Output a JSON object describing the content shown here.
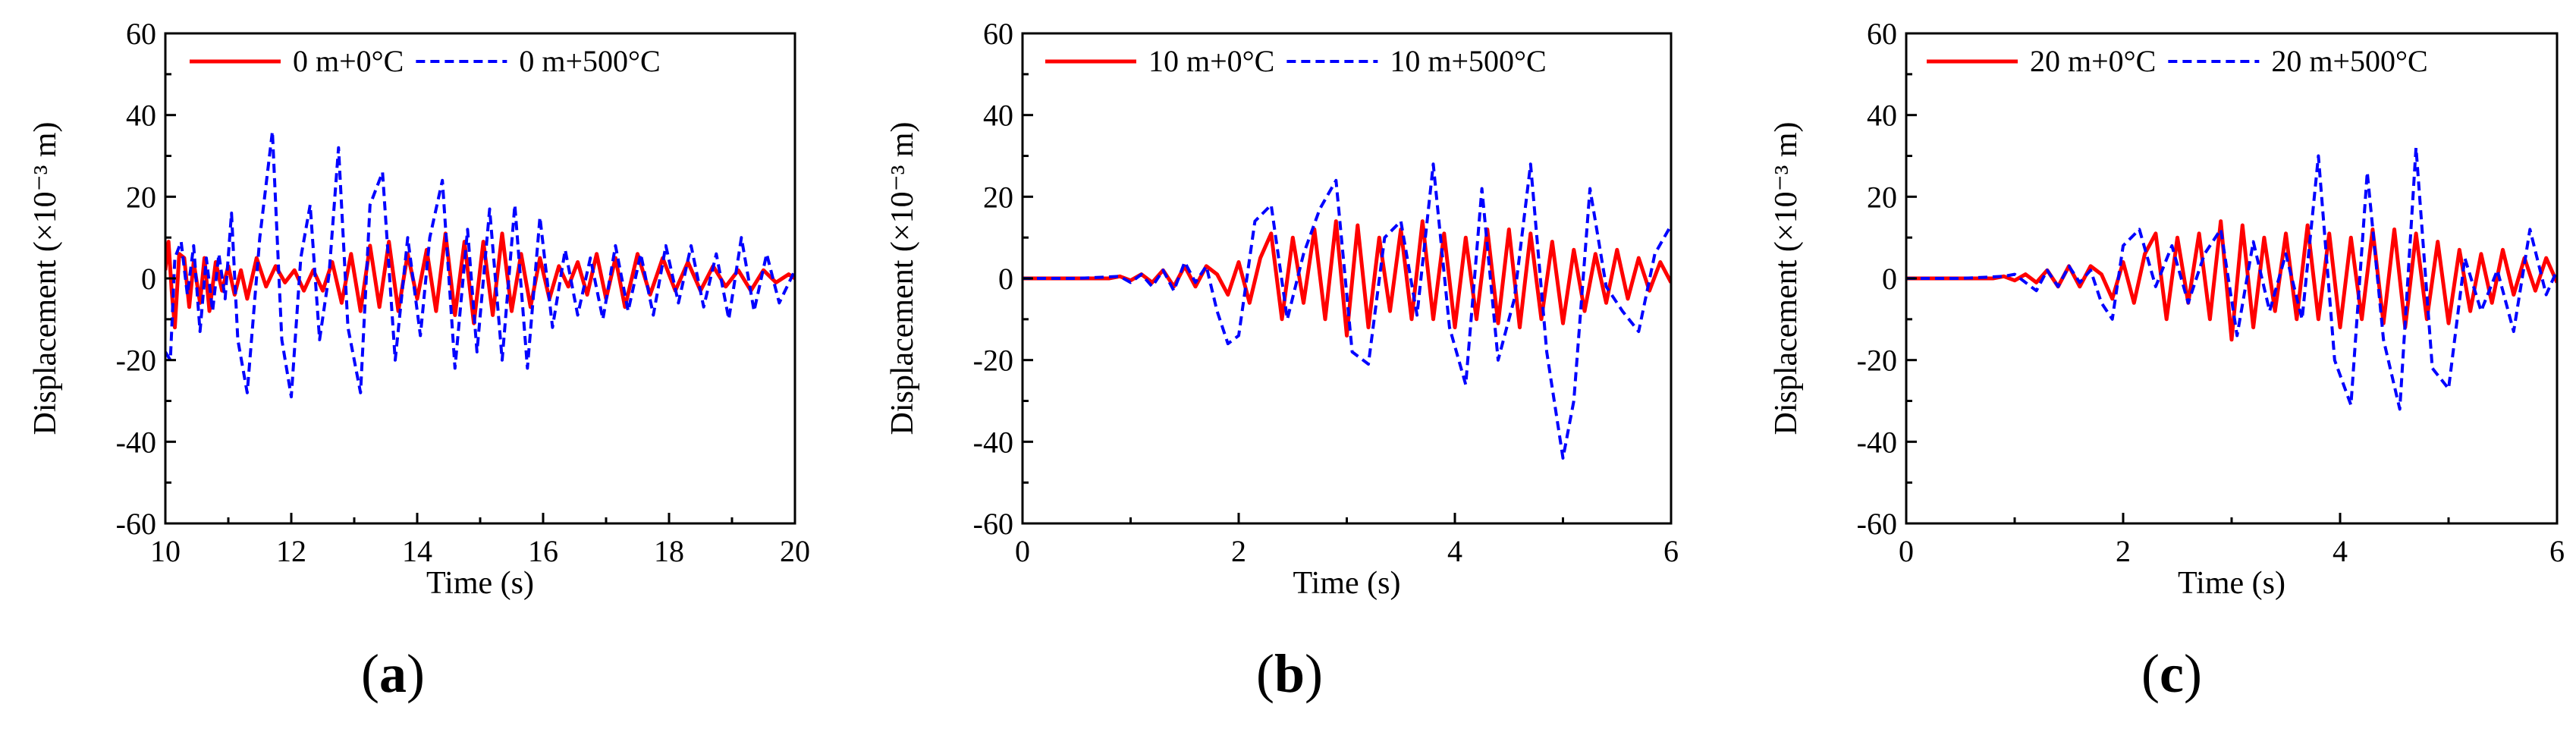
{
  "figure": {
    "panels": [
      {
        "open": "(",
        "letter": "a",
        "close": ")"
      },
      {
        "open": "(",
        "letter": "b",
        "close": ")"
      },
      {
        "open": "(",
        "letter": "c",
        "close": ")"
      }
    ]
  },
  "colors": {
    "red_series": "#ff0000",
    "blue_series": "#0000ff",
    "axis": "#000000"
  },
  "chart_data": [
    {
      "type": "line",
      "xlabel": "Time (s)",
      "ylabel": "Displacement (×10⁻³ m)",
      "xlim": [
        10,
        20
      ],
      "ylim": [
        -60,
        60
      ],
      "xticks": [
        "10",
        "12",
        "14",
        "16",
        "18",
        "20"
      ],
      "yticks": [
        "-60",
        "-40",
        "-20",
        "0",
        "20",
        "40",
        "60"
      ],
      "legend_position": "top",
      "series": [
        {
          "name": "0 m+0°C",
          "style": "solid",
          "color": "#ff0000",
          "x": [
            10,
            10.05,
            10.1,
            10.15,
            10.22,
            10.3,
            10.38,
            10.45,
            10.55,
            10.62,
            10.7,
            10.8,
            10.9,
            11.0,
            11.1,
            11.2,
            11.3,
            11.45,
            11.6,
            11.75,
            11.9,
            12.05,
            12.2,
            12.35,
            12.5,
            12.65,
            12.8,
            12.95,
            13.1,
            13.25,
            13.4,
            13.55,
            13.7,
            13.85,
            14.0,
            14.15,
            14.3,
            14.45,
            14.6,
            14.75,
            14.9,
            15.05,
            15.2,
            15.35,
            15.5,
            15.65,
            15.8,
            15.95,
            16.1,
            16.25,
            16.4,
            16.55,
            16.7,
            16.85,
            17.0,
            17.15,
            17.3,
            17.5,
            17.7,
            17.9,
            18.1,
            18.3,
            18.5,
            18.7,
            18.9,
            19.1,
            19.3,
            19.5,
            19.7,
            19.9,
            20
          ],
          "y": [
            2,
            9,
            -3,
            -12,
            6,
            5,
            -7,
            4,
            -6,
            5,
            -8,
            4,
            -3,
            3,
            -4,
            2,
            -5,
            5,
            -2,
            3,
            -1,
            2,
            -3,
            2,
            -3,
            4,
            -6,
            6,
            -8,
            8,
            -7,
            9,
            -8,
            6,
            -5,
            7,
            -8,
            11,
            -9,
            9,
            -11,
            9,
            -9,
            11,
            -8,
            6,
            -7,
            5,
            -5,
            3,
            -2,
            4,
            -4,
            6,
            -5,
            5,
            -7,
            6,
            -4,
            5,
            -3,
            4,
            -3,
            3,
            -2,
            2,
            -3,
            2,
            -1,
            1,
            0
          ]
        },
        {
          "name": "0 m+500°C",
          "style": "dashed",
          "color": "#0000ff",
          "x": [
            10,
            10.08,
            10.15,
            10.25,
            10.35,
            10.45,
            10.55,
            10.65,
            10.75,
            10.85,
            10.95,
            11.05,
            11.15,
            11.3,
            11.5,
            11.7,
            11.85,
            12.0,
            12.15,
            12.3,
            12.45,
            12.6,
            12.75,
            12.9,
            13.1,
            13.25,
            13.45,
            13.65,
            13.85,
            14.05,
            14.2,
            14.4,
            14.6,
            14.8,
            14.95,
            15.15,
            15.35,
            15.55,
            15.75,
            15.95,
            16.15,
            16.35,
            16.55,
            16.75,
            16.95,
            17.15,
            17.35,
            17.55,
            17.75,
            17.95,
            18.15,
            18.35,
            18.55,
            18.75,
            18.95,
            19.15,
            19.35,
            19.55,
            19.75,
            20
          ],
          "y": [
            -18,
            -20,
            5,
            9,
            -4,
            8,
            -13,
            5,
            -8,
            6,
            -5,
            16,
            -15,
            -28,
            10,
            36,
            -15,
            -29,
            5,
            18,
            -15,
            1,
            32,
            -12,
            -28,
            18,
            26,
            -20,
            10,
            -14,
            10,
            24,
            -22,
            12,
            -18,
            17,
            -20,
            18,
            -22,
            15,
            -12,
            7,
            -9,
            5,
            -10,
            8,
            -8,
            6,
            -9,
            8,
            -6,
            8,
            -7,
            6,
            -10,
            10,
            -8,
            6,
            -6,
            2
          ]
        }
      ]
    },
    {
      "type": "line",
      "xlabel": "Time (s)",
      "ylabel": "Displacement (×10⁻³ m)",
      "xlim": [
        0,
        6
      ],
      "ylim": [
        -60,
        60
      ],
      "xticks": [
        "0",
        "2",
        "4",
        "6"
      ],
      "yticks": [
        "-60",
        "-40",
        "-20",
        "0",
        "20",
        "40",
        "60"
      ],
      "legend_position": "top",
      "series": [
        {
          "name": "10 m+0°C",
          "style": "solid",
          "color": "#ff0000",
          "x": [
            0,
            0.4,
            0.8,
            0.9,
            1.0,
            1.1,
            1.2,
            1.3,
            1.4,
            1.5,
            1.6,
            1.7,
            1.8,
            1.9,
            2.0,
            2.1,
            2.2,
            2.3,
            2.4,
            2.5,
            2.6,
            2.7,
            2.8,
            2.9,
            3.0,
            3.1,
            3.2,
            3.3,
            3.4,
            3.5,
            3.6,
            3.7,
            3.8,
            3.9,
            4.0,
            4.1,
            4.2,
            4.3,
            4.4,
            4.5,
            4.6,
            4.7,
            4.8,
            4.9,
            5.0,
            5.1,
            5.2,
            5.3,
            5.4,
            5.5,
            5.6,
            5.7,
            5.8,
            5.9,
            6.0
          ],
          "y": [
            0,
            0,
            0,
            0.5,
            -0.5,
            1,
            -1,
            2,
            -2,
            3,
            -2,
            3,
            1,
            -4,
            4,
            -6,
            5,
            11,
            -10,
            10,
            -6,
            12,
            -10,
            14,
            -14,
            13,
            -12,
            10,
            -8,
            12,
            -10,
            14,
            -10,
            11,
            -12,
            10,
            -10,
            12,
            -11,
            12,
            -12,
            11,
            -10,
            9,
            -11,
            7,
            -8,
            6,
            -6,
            7,
            -5,
            5,
            -3,
            4,
            -1
          ]
        },
        {
          "name": "10 m+500°C",
          "style": "dashed",
          "color": "#0000ff",
          "x": [
            0,
            0.5,
            0.9,
            1.0,
            1.1,
            1.2,
            1.3,
            1.4,
            1.5,
            1.6,
            1.7,
            1.8,
            1.9,
            2.0,
            2.15,
            2.3,
            2.45,
            2.6,
            2.75,
            2.9,
            3.05,
            3.2,
            3.35,
            3.5,
            3.65,
            3.8,
            3.95,
            4.1,
            4.25,
            4.4,
            4.55,
            4.7,
            4.85,
            5.0,
            5.1,
            5.25,
            5.4,
            5.55,
            5.7,
            5.85,
            6.0
          ],
          "y": [
            0,
            0,
            0.5,
            -1,
            1,
            -2,
            2,
            -3,
            4,
            -1,
            3,
            -8,
            -16,
            -14,
            14,
            18,
            -10,
            6,
            17,
            24,
            -18,
            -21,
            10,
            14,
            -9,
            28,
            -12,
            -26,
            22,
            -20,
            -5,
            28,
            -18,
            -44,
            -30,
            22,
            -2,
            -8,
            -13,
            6,
            13
          ]
        }
      ]
    },
    {
      "type": "line",
      "xlabel": "Time (s)",
      "ylabel": "Displacement (×10⁻³ m)",
      "xlim": [
        0,
        6
      ],
      "ylim": [
        -60,
        60
      ],
      "xticks": [
        "0",
        "2",
        "4",
        "6"
      ],
      "yticks": [
        "-60",
        "-40",
        "-20",
        "0",
        "20",
        "40",
        "60"
      ],
      "legend_position": "top",
      "series": [
        {
          "name": "20 m+0°C",
          "style": "solid",
          "color": "#ff0000",
          "x": [
            0,
            0.4,
            0.8,
            0.9,
            1.0,
            1.1,
            1.2,
            1.3,
            1.4,
            1.5,
            1.6,
            1.7,
            1.8,
            1.9,
            2.0,
            2.1,
            2.2,
            2.3,
            2.4,
            2.5,
            2.6,
            2.7,
            2.8,
            2.9,
            3.0,
            3.1,
            3.2,
            3.3,
            3.4,
            3.5,
            3.6,
            3.7,
            3.8,
            3.9,
            4.0,
            4.1,
            4.2,
            4.3,
            4.4,
            4.5,
            4.6,
            4.7,
            4.8,
            4.9,
            5.0,
            5.1,
            5.2,
            5.3,
            5.4,
            5.5,
            5.6,
            5.7,
            5.8,
            5.9,
            6.0
          ],
          "y": [
            0,
            0,
            0,
            0.5,
            -0.5,
            1,
            -1,
            2,
            -2,
            3,
            -2,
            3,
            1,
            -5,
            4,
            -6,
            6,
            11,
            -10,
            10,
            -6,
            11,
            -10,
            14,
            -15,
            13,
            -12,
            10,
            -8,
            11,
            -10,
            13,
            -10,
            11,
            -12,
            10,
            -10,
            12,
            -11,
            12,
            -12,
            11,
            -10,
            9,
            -11,
            7,
            -8,
            6,
            -6,
            7,
            -4,
            5,
            -3,
            5,
            -1
          ]
        },
        {
          "name": "20 m+500°C",
          "style": "dashed",
          "color": "#0000ff",
          "x": [
            0,
            0.5,
            0.9,
            1.0,
            1.1,
            1.2,
            1.3,
            1.4,
            1.5,
            1.6,
            1.7,
            1.8,
            1.9,
            2.0,
            2.15,
            2.3,
            2.45,
            2.6,
            2.75,
            2.9,
            3.05,
            3.2,
            3.35,
            3.5,
            3.65,
            3.8,
            3.95,
            4.1,
            4.25,
            4.4,
            4.55,
            4.7,
            4.85,
            5.0,
            5.15,
            5.3,
            5.45,
            5.6,
            5.75,
            5.9,
            6.0
          ],
          "y": [
            0,
            0,
            0.5,
            1,
            -1,
            -3,
            2,
            -2,
            3,
            -1,
            2,
            -6,
            -10,
            8,
            12,
            -2,
            8,
            -6,
            6,
            12,
            -14,
            9,
            -8,
            6,
            -10,
            30,
            -20,
            -31,
            26,
            -15,
            -32,
            32,
            -22,
            -27,
            5,
            -8,
            2,
            -13,
            12,
            -4,
            2
          ]
        }
      ]
    }
  ]
}
